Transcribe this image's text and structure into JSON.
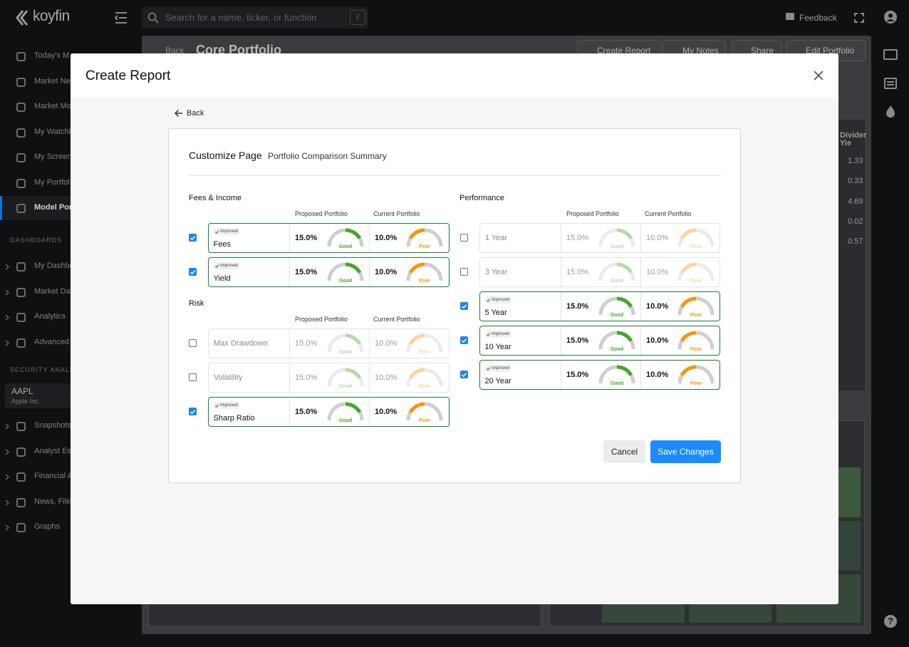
{
  "app": {
    "logo": "koyfin",
    "search_placeholder": "Search for a name, ticker, or function",
    "search_shortcut": "/",
    "feedback": "Feedback",
    "sidebar": {
      "items": [
        "Today's M",
        "Market Ne",
        "Market Mo",
        "My Watchl",
        "My Screen",
        "My Portfol",
        "Model Por"
      ],
      "selected": 6,
      "dashboards": {
        "heading": "DASHBOARDS",
        "items": [
          "My Dashbo",
          "Market Da",
          "Analytics",
          "Advanced"
        ]
      },
      "security": {
        "heading": "SECURITY ANALY",
        "ticker": "AAPL",
        "company": "Apple Inc.",
        "items": [
          "Snapshots",
          "Analyst Es",
          "Financial A",
          "News, Filin",
          "Graphs"
        ]
      }
    },
    "page": {
      "back": "Back",
      "title": "Core Portfolio",
      "actions": [
        "Create Report",
        "My Notes",
        "Share",
        "Edit Portfolio"
      ],
      "table": {
        "header": [
          "Divider",
          "Yie"
        ],
        "values": [
          "1.33",
          "0.33",
          "4.69",
          "0.02",
          "0.57"
        ]
      }
    },
    "help": "?"
  },
  "modal": {
    "title": "Create Report",
    "back": "Back",
    "card": {
      "title": "Customize Page",
      "subtitle": "Portfolio Comparison Summary",
      "gauge_colors": {
        "proposed": "#46a52c",
        "current": "#f5960f"
      },
      "columns": [
        [
          {
            "title": "Fees & Income",
            "proposed_header": "Proposed Portfolio",
            "current_header": "Current Portfolio",
            "rows": [
              {
                "checked": true,
                "badge": "Improved",
                "label": "Fees",
                "proposed": "15.0%",
                "proposed_rating": "Good",
                "current": "10.0%",
                "current_rating": "Poor"
              },
              {
                "checked": true,
                "badge": "Improved",
                "label": "Yield",
                "proposed": "15.0%",
                "proposed_rating": "Good",
                "current": "10.0%",
                "current_rating": "Poor"
              }
            ]
          },
          {
            "title": "Risk",
            "proposed_header": "Proposed Portfolio",
            "current_header": "Current Portfolio",
            "rows": [
              {
                "checked": false,
                "label": "Max Drawdown",
                "proposed": "15.0%",
                "proposed_rating": "Good",
                "current": "10.0%",
                "current_rating": "Poor"
              },
              {
                "checked": false,
                "label": "Volatility",
                "proposed": "15.0%",
                "proposed_rating": "Good",
                "current": "10.0%",
                "current_rating": "Poor"
              },
              {
                "checked": true,
                "badge": "Improved",
                "label": "Sharp Ratio",
                "proposed": "15.0%",
                "proposed_rating": "Good",
                "current": "10.0%",
                "current_rating": "Poor"
              }
            ]
          }
        ],
        [
          {
            "title": "Performance",
            "proposed_header": "Proposed Portfolio",
            "current_header": "Current Portfolio",
            "rows": [
              {
                "checked": false,
                "label": "1 Year",
                "proposed": "15.0%",
                "proposed_rating": "Good",
                "current": "10.0%",
                "current_rating": "Poor"
              },
              {
                "checked": false,
                "label": "3 Year",
                "proposed": "15.0%",
                "proposed_rating": "Good",
                "current": "10.0%",
                "current_rating": "Poor"
              },
              {
                "checked": true,
                "badge": "Improved",
                "label": "5 Year",
                "proposed": "15.0%",
                "proposed_rating": "Good",
                "current": "10.0%",
                "current_rating": "Poor"
              },
              {
                "checked": true,
                "badge": "Improved",
                "label": "10 Year",
                "proposed": "15.0%",
                "proposed_rating": "Good",
                "current": "10.0%",
                "current_rating": "Poor"
              },
              {
                "checked": true,
                "badge": "Improved",
                "label": "20 Year",
                "proposed": "15.0%",
                "proposed_rating": "Good",
                "current": "10.0%",
                "current_rating": "Poor"
              }
            ]
          }
        ]
      ]
    },
    "cancel": "Cancel",
    "save": "Save Changes"
  }
}
